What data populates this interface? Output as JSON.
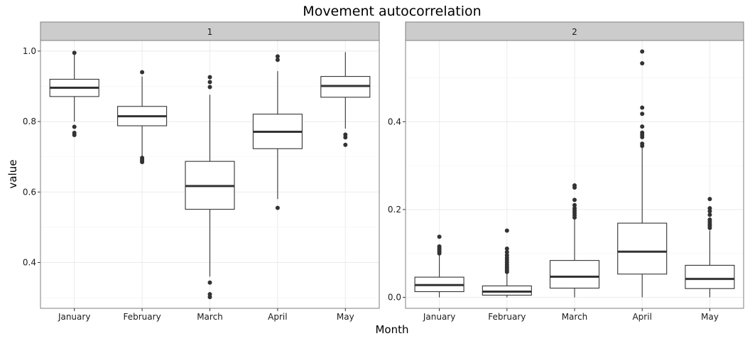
{
  "chart_data": {
    "type": "boxplot",
    "title": "Movement autocorrelation",
    "xlabel": "Month",
    "ylabel": "value",
    "categories": [
      "January",
      "February",
      "March",
      "April",
      "May"
    ],
    "facet_scales": "free_y",
    "grid": true,
    "legend": "none",
    "panels": [
      {
        "label": "1",
        "ylim": [
          0.27,
          1.03
        ],
        "yticks": [
          0.4,
          0.6,
          0.8,
          1.0
        ],
        "ytick_labels": [
          "0.4",
          "0.6",
          "0.8",
          "1.0"
        ],
        "boxes": [
          {
            "category": "January",
            "low": 0.8,
            "q1": 0.871,
            "median": 0.896,
            "q3": 0.92,
            "high": 0.993,
            "outliers": [
              0.995,
              0.785,
              0.768,
              0.762
            ]
          },
          {
            "category": "February",
            "low": 0.7,
            "q1": 0.788,
            "median": 0.815,
            "q3": 0.843,
            "high": 0.928,
            "outliers": [
              0.94,
              0.697,
              0.692,
              0.688,
              0.685
            ]
          },
          {
            "category": "March",
            "low": 0.36,
            "q1": 0.551,
            "median": 0.617,
            "q3": 0.687,
            "high": 0.876,
            "outliers": [
              0.926,
              0.912,
              0.898,
              0.343,
              0.31,
              0.302
            ]
          },
          {
            "category": "April",
            "low": 0.58,
            "q1": 0.723,
            "median": 0.771,
            "q3": 0.821,
            "high": 0.943,
            "outliers": [
              0.985,
              0.975,
              0.555
            ]
          },
          {
            "category": "May",
            "low": 0.78,
            "q1": 0.869,
            "median": 0.901,
            "q3": 0.928,
            "high": 0.997,
            "outliers": [
              0.763,
              0.755,
              0.734
            ]
          }
        ]
      },
      {
        "label": "2",
        "ylim": [
          -0.025,
          0.585
        ],
        "yticks": [
          0.0,
          0.2,
          0.4
        ],
        "ytick_labels": [
          "0.0",
          "0.2",
          "0.4"
        ],
        "boxes": [
          {
            "category": "January",
            "low": 0.0,
            "q1": 0.013,
            "median": 0.028,
            "q3": 0.046,
            "high": 0.097,
            "outliers": [
              0.138,
              0.116,
              0.112,
              0.108,
              0.104,
              0.1
            ]
          },
          {
            "category": "February",
            "low": 0.0,
            "q1": 0.005,
            "median": 0.013,
            "q3": 0.026,
            "high": 0.056,
            "outliers": [
              0.152,
              0.111,
              0.103,
              0.096,
              0.09,
              0.085,
              0.08,
              0.075,
              0.07,
              0.066,
              0.062,
              0.058
            ]
          },
          {
            "category": "March",
            "low": 0.0,
            "q1": 0.021,
            "median": 0.047,
            "q3": 0.084,
            "high": 0.178,
            "outliers": [
              0.255,
              0.25,
              0.222,
              0.21,
              0.203,
              0.197,
              0.192,
              0.187,
              0.182
            ]
          },
          {
            "category": "April",
            "low": 0.0,
            "q1": 0.053,
            "median": 0.104,
            "q3": 0.169,
            "high": 0.342,
            "outliers": [
              0.56,
              0.533,
              0.432,
              0.418,
              0.389,
              0.375,
              0.37,
              0.365,
              0.35,
              0.345
            ]
          },
          {
            "category": "May",
            "low": 0.0,
            "q1": 0.02,
            "median": 0.042,
            "q3": 0.073,
            "high": 0.152,
            "outliers": [
              0.224,
              0.203,
              0.196,
              0.188,
              0.177,
              0.172,
              0.167,
              0.163,
              0.158
            ]
          }
        ]
      }
    ]
  }
}
